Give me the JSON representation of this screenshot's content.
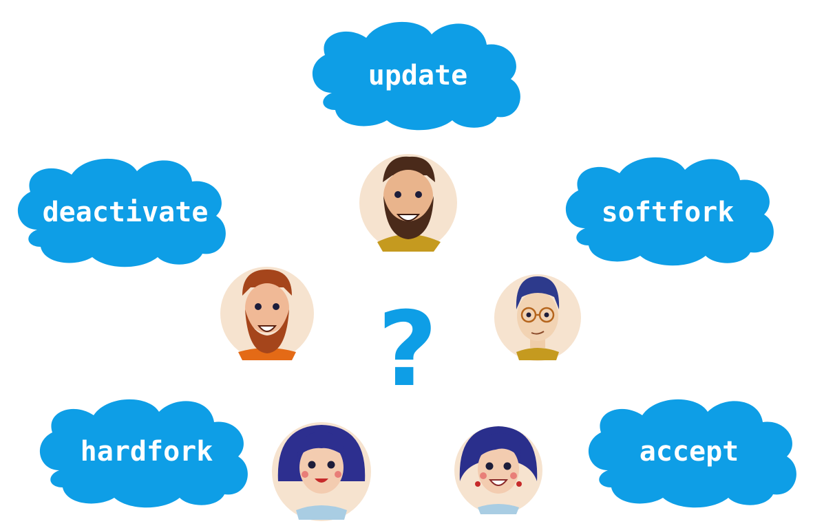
{
  "colors": {
    "cloud": "#0e9ee6",
    "cloud_text": "#ffffff",
    "avatar_bg": "#f6e3cf",
    "question_mark": "#0e9ee6"
  },
  "clouds": {
    "update": "update",
    "deactivate": "deactivate",
    "softfork": "softfork",
    "hardfork": "hardfork",
    "accept": "accept"
  },
  "center_symbol": "?",
  "avatars": [
    {
      "id": "bearded-man-dark-beard",
      "icon": "person-avatar-icon"
    },
    {
      "id": "bearded-man-ginger",
      "icon": "person-avatar-icon"
    },
    {
      "id": "man-with-glasses",
      "icon": "person-avatar-icon"
    },
    {
      "id": "woman-bob-hair",
      "icon": "person-avatar-icon"
    },
    {
      "id": "woman-curly-hair",
      "icon": "person-avatar-icon"
    }
  ]
}
